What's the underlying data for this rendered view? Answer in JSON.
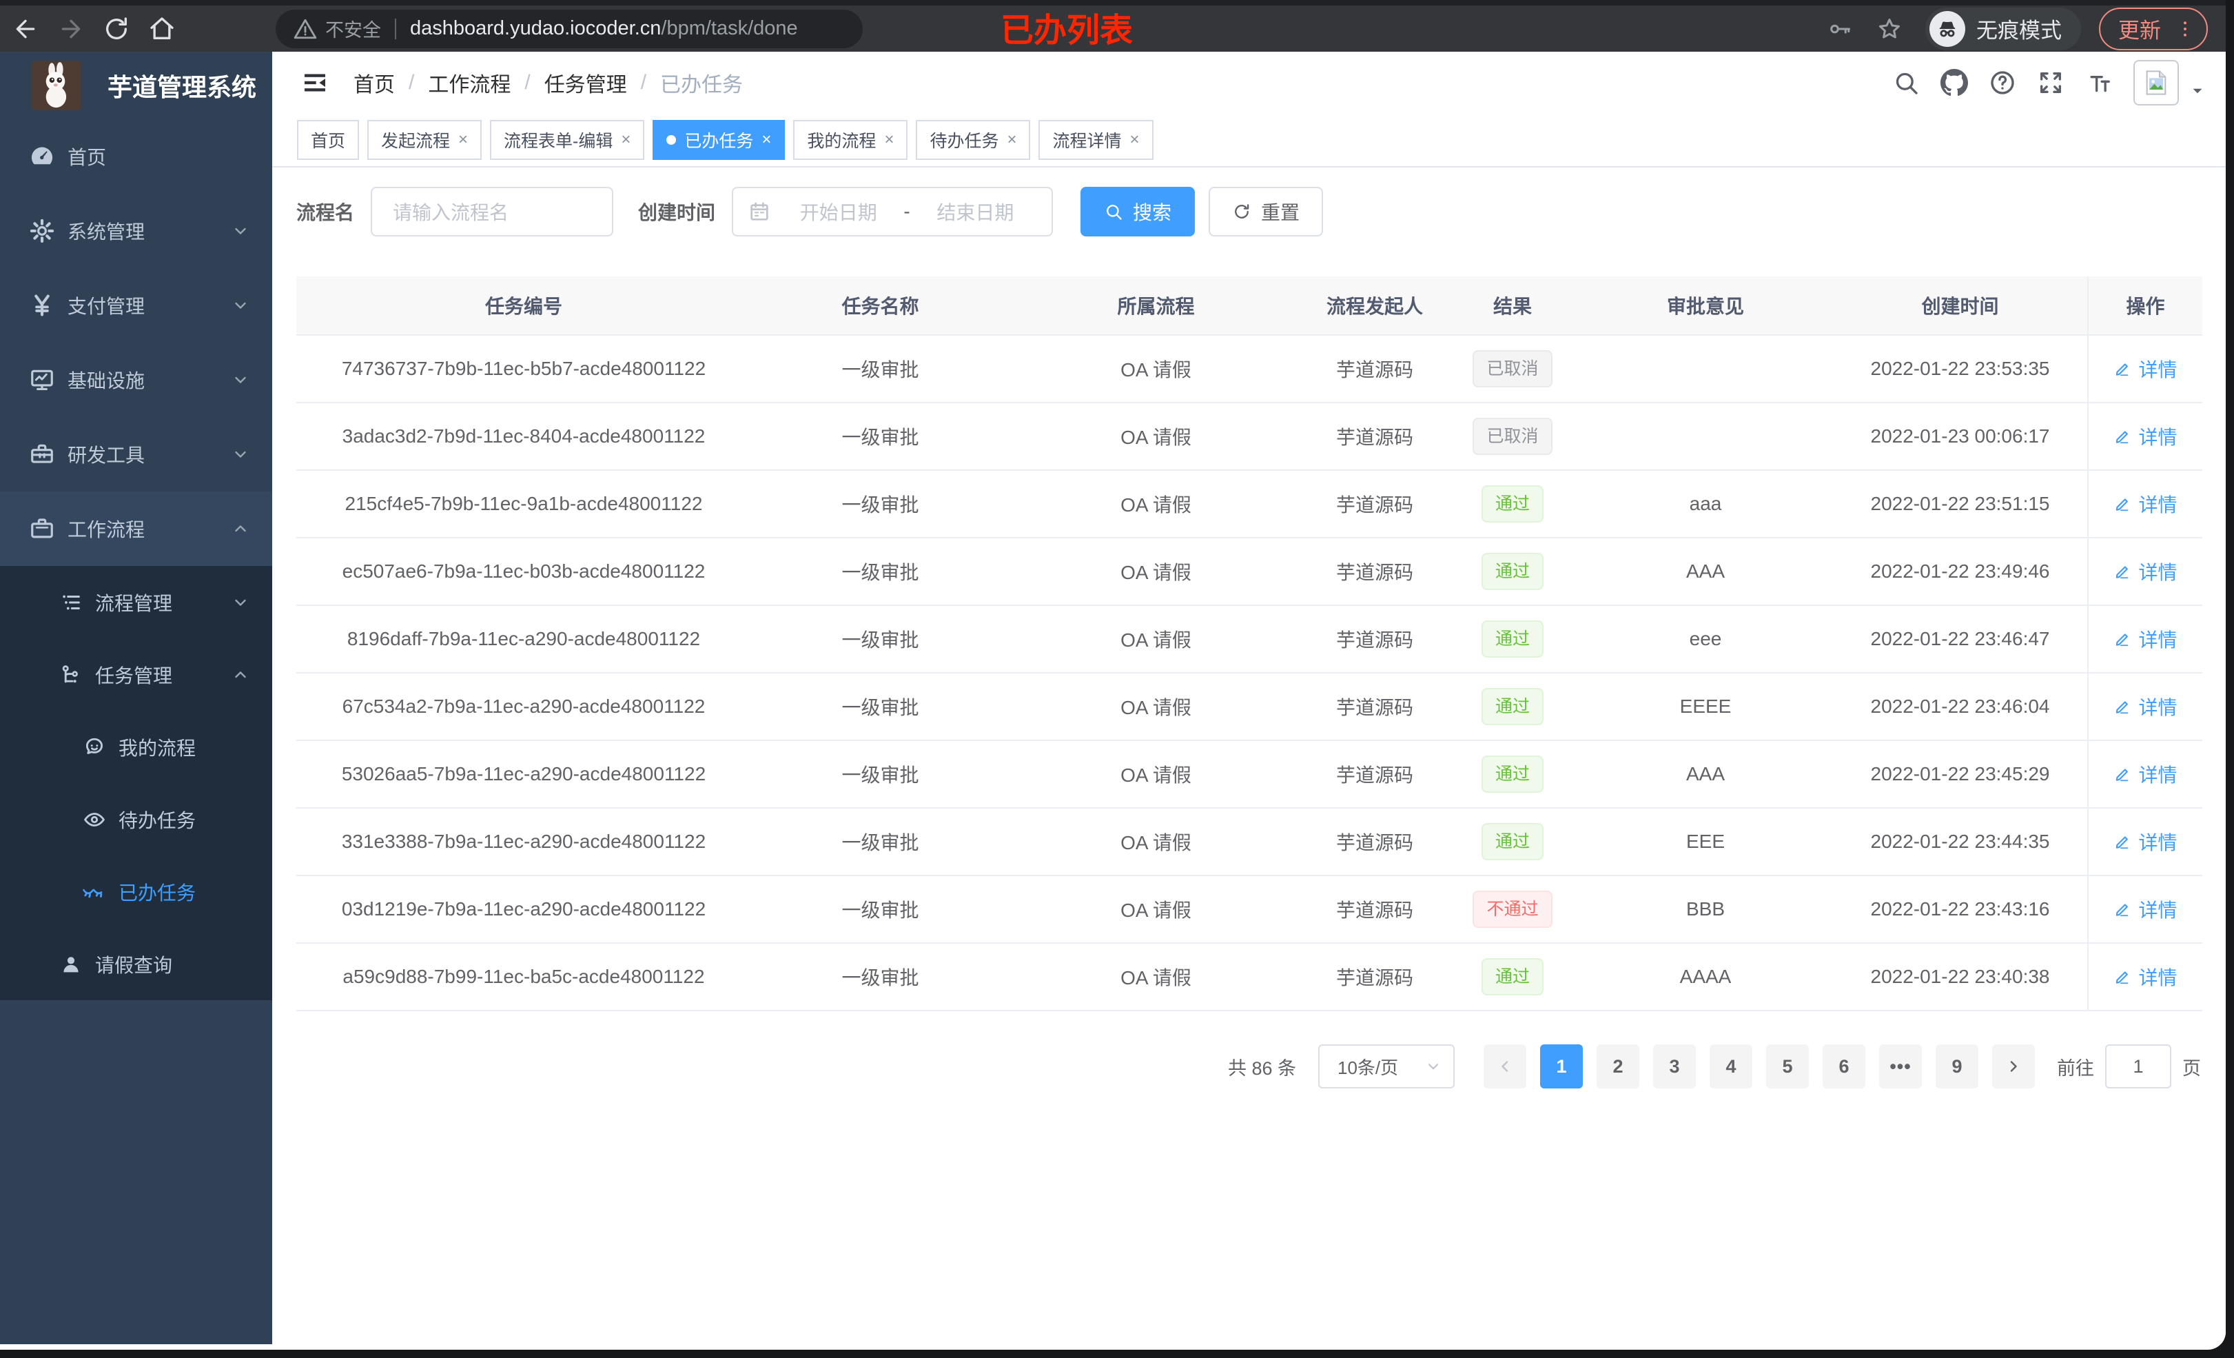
{
  "browser": {
    "security_warning": "不安全",
    "url_host": "dashboard.yudao.iocoder.cn",
    "url_path": "/bpm/task/done",
    "incognito_label": "无痕模式",
    "update_label": "更新",
    "annotation": "已办列表"
  },
  "sidebar": {
    "app_title": "芋道管理系统",
    "items": [
      {
        "key": "home",
        "icon": "dashboard-icon",
        "label": "首页",
        "level": 1
      },
      {
        "key": "system-management",
        "icon": "gear-icon",
        "label": "系统管理",
        "level": 1,
        "chevron": "down"
      },
      {
        "key": "payment-management",
        "icon": "yen-icon",
        "label": "支付管理",
        "level": 1,
        "chevron": "down"
      },
      {
        "key": "infrastructure",
        "icon": "monitor-icon",
        "label": "基础设施",
        "level": 1,
        "chevron": "down"
      },
      {
        "key": "dev-tools",
        "icon": "toolbox-icon",
        "label": "研发工具",
        "level": 1,
        "chevron": "down"
      },
      {
        "key": "workflow",
        "icon": "briefcase-icon",
        "label": "工作流程",
        "level": 1,
        "chevron": "up",
        "highlight": true
      },
      {
        "key": "process-management",
        "icon": "list-tree-icon",
        "label": "流程管理",
        "level": 2,
        "chevron": "down",
        "dark": true
      },
      {
        "key": "task-management",
        "icon": "branch-icon",
        "label": "任务管理",
        "level": 2,
        "chevron": "up",
        "dark": true
      },
      {
        "key": "my-process",
        "icon": "face-icon",
        "label": "我的流程",
        "level": 3,
        "dark": true
      },
      {
        "key": "todo-tasks",
        "icon": "eye-icon",
        "label": "待办任务",
        "level": 3,
        "dark": true
      },
      {
        "key": "done-tasks",
        "icon": "eye-off-icon",
        "label": "已办任务",
        "level": 3,
        "dark": true,
        "active": true
      },
      {
        "key": "leave-query",
        "icon": "user-icon",
        "label": "请假查询",
        "level": 2,
        "dark": true
      }
    ]
  },
  "breadcrumb": {
    "separator": "/",
    "items": [
      "首页",
      "工作流程",
      "任务管理",
      "已办任务"
    ]
  },
  "tabs": [
    {
      "label": "首页",
      "closable": false,
      "active": false
    },
    {
      "label": "发起流程",
      "closable": true,
      "active": false
    },
    {
      "label": "流程表单-编辑",
      "closable": true,
      "active": false
    },
    {
      "label": "已办任务",
      "closable": true,
      "active": true
    },
    {
      "label": "我的流程",
      "closable": true,
      "active": false
    },
    {
      "label": "待办任务",
      "closable": true,
      "active": false
    },
    {
      "label": "流程详情",
      "closable": true,
      "active": false
    }
  ],
  "filters": {
    "name_label": "流程名",
    "name_placeholder": "请输入流程名",
    "date_label": "创建时间",
    "date_start_placeholder": "开始日期",
    "date_separator": "-",
    "date_end_placeholder": "结束日期",
    "search_label": "搜索",
    "reset_label": "重置"
  },
  "table": {
    "columns": [
      "任务编号",
      "任务名称",
      "所属流程",
      "流程发起人",
      "结果",
      "审批意见",
      "创建时间",
      "操作"
    ],
    "detail_label": "详情",
    "rows": [
      {
        "id": "74736737-7b9b-11ec-b5b7-acde48001122",
        "name": "一级审批",
        "process": "OA 请假",
        "starter": "芋道源码",
        "result": "已取消",
        "result_type": "info",
        "comment": "",
        "created": "2022-01-22 23:53:35"
      },
      {
        "id": "3adac3d2-7b9d-11ec-8404-acde48001122",
        "name": "一级审批",
        "process": "OA 请假",
        "starter": "芋道源码",
        "result": "已取消",
        "result_type": "info",
        "comment": "",
        "created": "2022-01-23 00:06:17"
      },
      {
        "id": "215cf4e5-7b9b-11ec-9a1b-acde48001122",
        "name": "一级审批",
        "process": "OA 请假",
        "starter": "芋道源码",
        "result": "通过",
        "result_type": "success",
        "comment": "aaa",
        "created": "2022-01-22 23:51:15"
      },
      {
        "id": "ec507ae6-7b9a-11ec-b03b-acde48001122",
        "name": "一级审批",
        "process": "OA 请假",
        "starter": "芋道源码",
        "result": "通过",
        "result_type": "success",
        "comment": "AAA",
        "created": "2022-01-22 23:49:46"
      },
      {
        "id": "8196daff-7b9a-11ec-a290-acde48001122",
        "name": "一级审批",
        "process": "OA 请假",
        "starter": "芋道源码",
        "result": "通过",
        "result_type": "success",
        "comment": "eee",
        "created": "2022-01-22 23:46:47"
      },
      {
        "id": "67c534a2-7b9a-11ec-a290-acde48001122",
        "name": "一级审批",
        "process": "OA 请假",
        "starter": "芋道源码",
        "result": "通过",
        "result_type": "success",
        "comment": "EEEE",
        "created": "2022-01-22 23:46:04"
      },
      {
        "id": "53026aa5-7b9a-11ec-a290-acde48001122",
        "name": "一级审批",
        "process": "OA 请假",
        "starter": "芋道源码",
        "result": "通过",
        "result_type": "success",
        "comment": "AAA",
        "created": "2022-01-22 23:45:29"
      },
      {
        "id": "331e3388-7b9a-11ec-a290-acde48001122",
        "name": "一级审批",
        "process": "OA 请假",
        "starter": "芋道源码",
        "result": "通过",
        "result_type": "success",
        "comment": "EEE",
        "created": "2022-01-22 23:44:35"
      },
      {
        "id": "03d1219e-7b9a-11ec-a290-acde48001122",
        "name": "一级审批",
        "process": "OA 请假",
        "starter": "芋道源码",
        "result": "不通过",
        "result_type": "danger",
        "comment": "BBB",
        "created": "2022-01-22 23:43:16"
      },
      {
        "id": "a59c9d88-7b99-11ec-ba5c-acde48001122",
        "name": "一级审批",
        "process": "OA 请假",
        "starter": "芋道源码",
        "result": "通过",
        "result_type": "success",
        "comment": "AAAA",
        "created": "2022-01-22 23:40:38"
      }
    ]
  },
  "pagination": {
    "total_label": "共 86 条",
    "page_size": "10条/页",
    "pages": [
      "1",
      "2",
      "3",
      "4",
      "5",
      "6",
      "•••",
      "9"
    ],
    "active_page": "1",
    "goto_label": "前往",
    "goto_value": "1",
    "page_unit": "页"
  },
  "colors": {
    "accent": "#409eff",
    "success": "#67c23a",
    "danger": "#f56c6c",
    "info": "#909399",
    "sidebar_bg": "#304156",
    "submenu_bg": "#1f2d3d",
    "annotation_red": "#ff2600"
  }
}
